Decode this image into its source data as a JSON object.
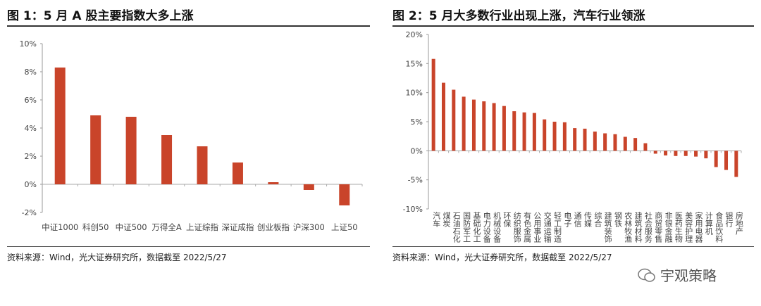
{
  "chart_data": [
    {
      "type": "bar",
      "title": "图 1：5 月 A 股主要指数大多上涨",
      "ylim": [
        -2,
        10
      ],
      "yticks": [
        "10%",
        "8%",
        "6%",
        "4%",
        "2%",
        "0%",
        "-2%"
      ],
      "ytick_values": [
        10,
        8,
        6,
        4,
        2,
        0,
        -2
      ],
      "categories": [
        "中证1000",
        "科创50",
        "中证500",
        "万得全A",
        "上证综指",
        "深证成指",
        "创业板指",
        "沪深300",
        "上证50"
      ],
      "values": [
        8.3,
        4.9,
        4.8,
        3.5,
        2.7,
        1.55,
        0.15,
        -0.4,
        -1.5
      ],
      "color": "#c9442a"
    },
    {
      "type": "bar",
      "title": "图 2：5 月大多数行业出现上涨，汽车行业领涨",
      "ylim": [
        -10,
        20
      ],
      "yticks": [
        "20%",
        "15%",
        "10%",
        "5%",
        "0%",
        "-5%",
        "-10%"
      ],
      "ytick_values": [
        20,
        15,
        10,
        5,
        0,
        -5,
        -10
      ],
      "categories": [
        "汽车",
        "煤炭",
        "石油石化",
        "国防军工",
        "基础化工",
        "电力设备",
        "机械设备",
        "环保",
        "纺织服饰",
        "有色金属",
        "公用事业",
        "交通运输",
        "轻工制造",
        "电子",
        "通信",
        "传媒",
        "综合",
        "建筑装饰",
        "钢铁",
        "农林牧渔",
        "建筑材料",
        "社会服务",
        "商贸零售",
        "非银金融",
        "医药生物",
        "美容护理",
        "家用电器",
        "计算机",
        "食品饮料",
        "银行",
        "房地产"
      ],
      "values": [
        15.8,
        11.7,
        10.5,
        9.3,
        8.8,
        8.5,
        8.2,
        7.7,
        6.8,
        6.6,
        6.5,
        5.4,
        5.0,
        4.9,
        3.9,
        3.8,
        3.3,
        3.0,
        2.85,
        2.4,
        2.2,
        1.3,
        -0.5,
        -0.8,
        -0.9,
        -0.9,
        -1.0,
        -1.3,
        -2.8,
        -3.3,
        -4.5
      ],
      "color": "#c9442a"
    }
  ],
  "source1": "资料来源：Wind，光大证券研究所，数据截至 2022/5/27",
  "source2": "资料来源：Wind，光大证券研究所，数据截至 2022/5/27",
  "watermark": "宇观策略"
}
